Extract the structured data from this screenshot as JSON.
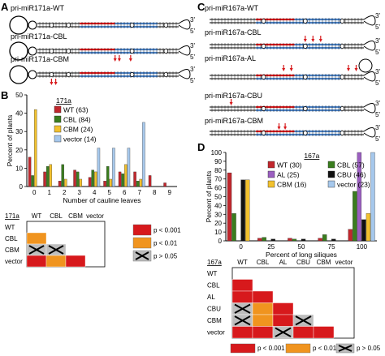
{
  "panels": {
    "A": {
      "letter": "A",
      "structures": [
        {
          "label": "pri-miR171a-WT",
          "arrows": 0
        },
        {
          "label": "pri-miR171a-CBL",
          "arrows": 3
        },
        {
          "label": "pri-miR171a-CBM",
          "arrows": 2
        }
      ],
      "end3": "3'",
      "end5": "5'"
    },
    "C": {
      "letter": "C",
      "structures": [
        {
          "label": "pri-miR167a-WT",
          "arrows": 0
        },
        {
          "label": "pri-miR167a-CBL",
          "arrows": 3
        },
        {
          "label": "pri-miR167a-AL",
          "arrows": 4
        },
        {
          "label": "pri-miR167a-CBU",
          "arrows": 1
        },
        {
          "label": "pri-miR167a-CBM",
          "arrows": 2
        }
      ],
      "end3": "3'",
      "end5": "5'"
    },
    "B": {
      "letter": "B",
      "pval_matrix": {
        "header": "171a",
        "columns": [
          "WT",
          "CBL",
          "CBM",
          "vector"
        ],
        "rows": [
          "WT",
          "CBL",
          "CBM",
          "vector"
        ],
        "cells": [
          [
            null,
            null,
            null,
            null
          ],
          [
            "p<0.01",
            null,
            null,
            null
          ],
          [
            "ns",
            "ns",
            null,
            null
          ],
          [
            "p<0.001",
            "p<0.01",
            "p<0.001",
            null
          ]
        ]
      }
    },
    "D": {
      "letter": "D",
      "pval_matrix": {
        "header": "167a",
        "columns": [
          "WT",
          "CBL",
          "AL",
          "CBU",
          "CBM",
          "vector"
        ],
        "rows": [
          "WT",
          "CBL",
          "AL",
          "CBU",
          "CBM",
          "vector"
        ],
        "cells": [
          [
            null,
            null,
            null,
            null,
            null,
            null
          ],
          [
            "p<0.001",
            null,
            null,
            null,
            null,
            null
          ],
          [
            "p<0.001",
            "p<0.001",
            null,
            null,
            null,
            null
          ],
          [
            "ns",
            "p<0.01",
            "p<0.001",
            null,
            null,
            null
          ],
          [
            "ns",
            "p<0.01",
            "p<0.001",
            "ns",
            null,
            null
          ],
          [
            "p<0.001",
            "p<0.001",
            "ns",
            "p<0.001",
            "p<0.001",
            null
          ]
        ]
      }
    }
  },
  "legend_keys": {
    "p001": "p < 0.001",
    "p01": "p < 0.01",
    "ns": "p > 0.05"
  },
  "colors": {
    "red": "#d7191c",
    "orange": "#f0941f",
    "grey": "#bdbdbd",
    "WT": "#c1272d",
    "CBL": "#3a7d1e",
    "CBM": "#f2c12e",
    "vector": "#a6c8ec",
    "AL": "#9b5fc0",
    "CBU": "#111111"
  },
  "chart_data": [
    {
      "type": "bar",
      "panel": "B",
      "header": "171a",
      "xlabel": "Number of cauline leaves",
      "ylabel": "Percent of plants",
      "categories": [
        "0",
        "1",
        "2",
        "3",
        "4",
        "5",
        "6",
        "7",
        "8",
        "9"
      ],
      "ylim": [
        0,
        50
      ],
      "yticks": [
        0,
        10,
        20,
        30,
        40,
        50
      ],
      "series": [
        {
          "name": "WT (63)",
          "color": "#c1272d",
          "values": [
            16,
            8,
            3,
            9,
            5,
            3,
            8,
            8,
            6,
            2
          ]
        },
        {
          "name": "CBL (84)",
          "color": "#3a7d1e",
          "values": [
            6,
            11,
            12,
            8,
            9,
            11,
            7,
            3,
            0,
            0
          ]
        },
        {
          "name": "CBM (24)",
          "color": "#f2c12e",
          "values": [
            42,
            12,
            4,
            4,
            8,
            4,
            12,
            4,
            0,
            0
          ]
        },
        {
          "name": "vector (14)",
          "color": "#a6c8ec",
          "values": [
            0,
            0,
            0,
            0,
            21,
            21,
            21,
            35,
            0,
            0
          ]
        }
      ]
    },
    {
      "type": "bar",
      "panel": "D",
      "header": "167a",
      "xlabel": "Percent of long siliques",
      "ylabel": "Percent of plants",
      "categories": [
        "0",
        "25",
        "50",
        "75",
        "100"
      ],
      "ylim": [
        0,
        100
      ],
      "yticks": [
        0,
        10,
        20,
        30,
        40,
        50,
        60,
        70,
        80,
        90,
        100
      ],
      "series": [
        {
          "name": "WT (30)",
          "color": "#c1272d",
          "values": [
            77,
            3,
            3,
            3,
            13
          ]
        },
        {
          "name": "CBL (57)",
          "color": "#3a7d1e",
          "values": [
            31,
            4,
            2,
            7,
            56
          ]
        },
        {
          "name": "AL (25)",
          "color": "#9b5fc0",
          "values": [
            0,
            0,
            0,
            0,
            100
          ]
        },
        {
          "name": "CBU (46)",
          "color": "#111111",
          "values": [
            69,
            2,
            2,
            2,
            24
          ]
        },
        {
          "name": "CBM (16)",
          "color": "#f2c12e",
          "values": [
            69,
            0,
            0,
            0,
            31
          ]
        },
        {
          "name": "vector (23)",
          "color": "#a6c8ec",
          "values": [
            0,
            0,
            0,
            0,
            100
          ]
        }
      ]
    }
  ]
}
